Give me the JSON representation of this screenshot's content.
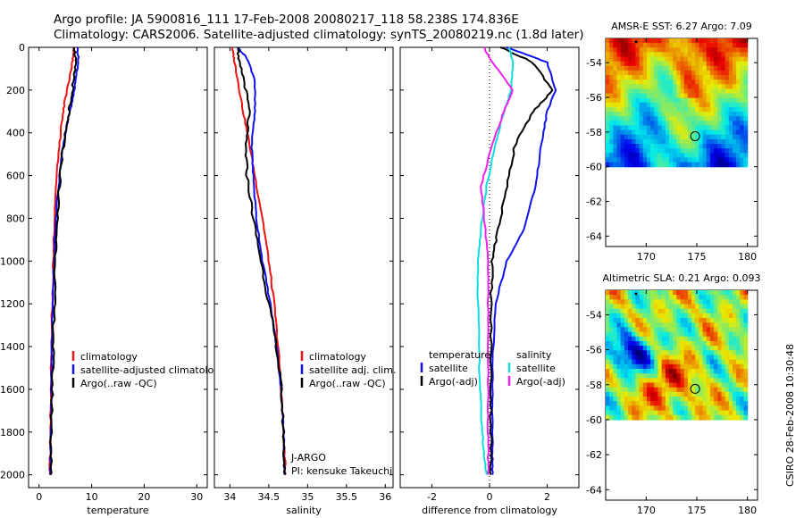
{
  "title": {
    "line1": "Argo profile: JA 5900816_111 17-Feb-2008 20080217_118 58.238S 174.836E",
    "line2": "Climatology: CARS2006. Satellite-adjusted climatology: synTS_20080219.nc (1.8d later)"
  },
  "side_label": "CSIRO 28-Feb-2008 10:30:48",
  "colors": {
    "climatology": "#ee1111",
    "satellite": "#1111ee",
    "argo": "#000000",
    "cyan": "#11dddd",
    "magenta": "#ee22ee"
  },
  "chart_data": [
    {
      "type": "line",
      "id": "temperature",
      "xlabel": "temperature",
      "xlim": [
        -2,
        32
      ],
      "xticks": [
        0,
        10,
        20,
        30
      ],
      "ylim": [
        0,
        2060
      ],
      "yticks": [
        0,
        200,
        400,
        600,
        800,
        1000,
        1200,
        1400,
        1600,
        1800,
        2000
      ],
      "legend": [
        {
          "label": "climatology",
          "color": "#ee1111"
        },
        {
          "label": "satellite-adjusted climatology",
          "color": "#1111ee"
        },
        {
          "label": "Argo(..raw -QC)",
          "color": "#000000"
        }
      ],
      "series": [
        {
          "name": "climatology",
          "color": "#ee1111",
          "width": 2,
          "x": [
            6.6,
            6.4,
            5.8,
            4.9,
            4.3,
            3.7,
            3.1,
            2.8,
            2.6,
            2.4,
            2.3,
            2.2,
            2.1,
            2.0
          ],
          "depth": [
            0,
            60,
            150,
            250,
            350,
            500,
            700,
            900,
            1100,
            1300,
            1500,
            1700,
            1900,
            2000
          ]
        },
        {
          "name": "satellite",
          "color": "#1111ee",
          "width": 2,
          "x": [
            7.3,
            7.5,
            7.0,
            6.3,
            5.4,
            4.3,
            3.5,
            3.0,
            2.7,
            2.5,
            2.4,
            2.3,
            2.2,
            2.1
          ],
          "depth": [
            0,
            60,
            150,
            250,
            350,
            500,
            700,
            900,
            1100,
            1300,
            1500,
            1700,
            1900,
            2000
          ]
        },
        {
          "name": "Argo(..raw -QC)",
          "color": "#000000",
          "width": 2,
          "x": [
            6.8,
            6.9,
            6.6,
            6.0,
            5.3,
            4.4,
            3.7,
            3.3,
            3.0,
            2.8,
            2.6,
            2.4,
            2.3,
            2.2
          ],
          "depth": [
            0,
            60,
            150,
            250,
            350,
            500,
            700,
            900,
            1100,
            1300,
            1500,
            1700,
            1900,
            2000
          ]
        }
      ]
    },
    {
      "type": "line",
      "id": "salinity",
      "xlabel": "salinity",
      "xlim": [
        33.8,
        36.1
      ],
      "xticks": [
        34,
        34.5,
        35,
        35.5,
        36
      ],
      "ylim": [
        0,
        2060
      ],
      "yticks": [
        0,
        200,
        400,
        600,
        800,
        1000,
        1200,
        1400,
        1600,
        1800,
        2000
      ],
      "legend": [
        {
          "label": "climatology",
          "color": "#ee1111"
        },
        {
          "label": "satellite adj. clim.",
          "color": "#1111ee"
        },
        {
          "label": "Argo(..raw -QC)",
          "color": "#000000"
        }
      ],
      "annotations": [
        "J-ARGO",
        "PI: kensuke Takeuchi"
      ],
      "series": [
        {
          "name": "climatology",
          "color": "#ee1111",
          "width": 2,
          "x": [
            34.03,
            34.05,
            34.1,
            34.17,
            34.25,
            34.32,
            34.42,
            34.5,
            34.57,
            34.62,
            34.66,
            34.69,
            34.71,
            34.71
          ],
          "depth": [
            0,
            50,
            150,
            300,
            450,
            600,
            800,
            1000,
            1200,
            1400,
            1600,
            1800,
            1950,
            2000
          ]
        },
        {
          "name": "satellite",
          "color": "#1111ee",
          "width": 2,
          "x": [
            34.1,
            34.22,
            34.32,
            34.32,
            34.28,
            34.3,
            34.34,
            34.42,
            34.52,
            34.6,
            34.66,
            34.69,
            34.7,
            34.7
          ],
          "depth": [
            0,
            50,
            150,
            300,
            450,
            600,
            800,
            1000,
            1200,
            1400,
            1600,
            1800,
            1950,
            2000
          ]
        },
        {
          "name": "Argo(..raw -QC)",
          "color": "#000000",
          "width": 2,
          "x": [
            34.12,
            34.1,
            34.18,
            34.25,
            34.2,
            34.22,
            34.3,
            34.4,
            34.5,
            34.6,
            34.66,
            34.69,
            34.7,
            34.7
          ],
          "depth": [
            0,
            50,
            150,
            300,
            450,
            600,
            800,
            1000,
            1200,
            1400,
            1600,
            1800,
            1950,
            2000
          ]
        }
      ]
    },
    {
      "type": "line",
      "id": "difference",
      "xlabel": "difference from climatology",
      "xlim": [
        -3.1,
        3.1
      ],
      "xticks": [
        -2,
        0,
        2
      ],
      "ylim": [
        0,
        2060
      ],
      "yticks": [
        0,
        200,
        400,
        600,
        800,
        1000,
        1200,
        1400,
        1600,
        1800,
        2000
      ],
      "legend_left_title": "temperature",
      "legend_right_title": "salinity",
      "legend": [
        {
          "label": "satellite",
          "color": "#1111ee",
          "col": "left"
        },
        {
          "label": "Argo(-adj)",
          "color": "#000000",
          "col": "left"
        },
        {
          "label": "satellite",
          "color": "#11dddd",
          "col": "right"
        },
        {
          "label": "Argo(-adj)",
          "color": "#ee22ee",
          "col": "right"
        }
      ],
      "series": [
        {
          "name": "temperature satellite",
          "color": "#1111ee",
          "width": 2,
          "x": [
            0.6,
            2.0,
            2.3,
            2.0,
            1.8,
            1.6,
            1.2,
            0.6,
            0.2,
            0.1,
            0.1,
            0.1,
            0.1
          ],
          "depth": [
            0,
            70,
            200,
            300,
            450,
            650,
            850,
            1000,
            1200,
            1500,
            1700,
            1900,
            2000
          ]
        },
        {
          "name": "temperature Argo(-adj)",
          "color": "#000000",
          "width": 2,
          "x": [
            0.4,
            1.5,
            2.2,
            1.5,
            0.9,
            0.6,
            0.3,
            0.1,
            0.05,
            0.05,
            0.05,
            0.05,
            0.05
          ],
          "depth": [
            0,
            70,
            200,
            300,
            450,
            650,
            850,
            1000,
            1200,
            1500,
            1700,
            1900,
            2000
          ]
        },
        {
          "name": "salinity satellite",
          "color": "#11dddd",
          "width": 2,
          "x": [
            0.7,
            0.8,
            0.75,
            0.5,
            0.2,
            -0.1,
            -0.3,
            -0.4,
            -0.4,
            -0.35,
            -0.3,
            -0.2,
            -0.1
          ],
          "depth": [
            0,
            70,
            200,
            300,
            450,
            650,
            850,
            1000,
            1200,
            1500,
            1700,
            1900,
            2000
          ]
        },
        {
          "name": "salinity Argo(-adj)",
          "color": "#ee22ee",
          "width": 2,
          "x": [
            -0.2,
            0.1,
            0.8,
            0.5,
            0.1,
            -0.3,
            -0.15,
            -0.05,
            -0.05,
            -0.05,
            -0.05,
            -0.05,
            -0.05
          ],
          "depth": [
            0,
            70,
            200,
            300,
            450,
            650,
            850,
            1000,
            1200,
            1500,
            1700,
            1900,
            2000
          ]
        }
      ]
    },
    {
      "type": "heatmap",
      "id": "sst",
      "title": "AMSR-E SST: 6.27 Argo: 7.09",
      "xlim": [
        166,
        181
      ],
      "ylim": [
        -64.6,
        -52.6
      ],
      "xticks": [
        170,
        175,
        180
      ],
      "yticks": [
        -54,
        -56,
        -58,
        -60,
        -62,
        -64
      ],
      "data_extent": {
        "lon": [
          166,
          180
        ],
        "lat": [
          -60,
          -52.6
        ]
      },
      "marker": {
        "lon": 174.836,
        "lat": -58.238
      },
      "ref_dot": {
        "lon": 169,
        "lat": -52.8
      }
    },
    {
      "type": "heatmap",
      "id": "sla",
      "title": "Altimetric SLA: 0.21 Argo: 0.093",
      "xlim": [
        166,
        181
      ],
      "ylim": [
        -64.6,
        -52.6
      ],
      "xticks": [
        170,
        175,
        180
      ],
      "yticks": [
        -54,
        -56,
        -58,
        -60,
        -62,
        -64
      ],
      "data_extent": {
        "lon": [
          166,
          180
        ],
        "lat": [
          -60,
          -52.6
        ]
      },
      "marker": {
        "lon": 174.836,
        "lat": -58.238
      },
      "ref_dot": {
        "lon": 169,
        "lat": -52.8
      }
    }
  ]
}
